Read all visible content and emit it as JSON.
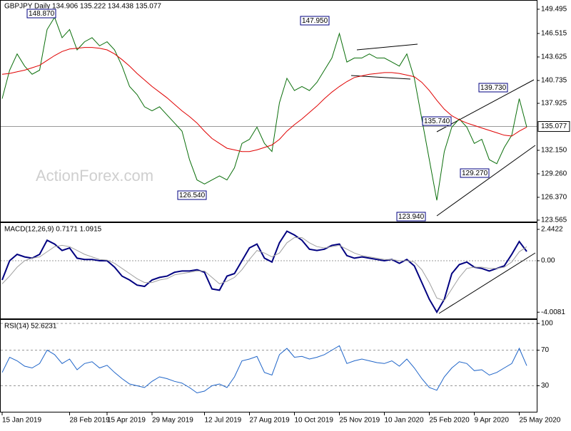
{
  "chart_data": [
    {
      "type": "line",
      "title": "GBPJPY Daily  134.906 135.222 134.438 135.077",
      "watermark": "ActionForex.com",
      "ylim": [
        123.3,
        150.63
      ],
      "yticks": [
        149.495,
        146.515,
        143.625,
        140.735,
        137.925,
        {
          "value": 132.15,
          "label": "132.150"
        },
        {
          "value": 129.26,
          "label": "129.260"
        },
        {
          "value": 126.37,
          "label": "126.370"
        },
        123.565
      ],
      "last_price": {
        "value": 135.077,
        "label": "135.077"
      },
      "annotations": [
        "148.870",
        "147.950",
        "126.540",
        "135.740",
        "139.730",
        "129.270",
        "123.940"
      ],
      "series": [
        {
          "name": "Close",
          "color": "#0a6e0a",
          "values": [
            138.5,
            142,
            144,
            142.5,
            141.5,
            142,
            147,
            148.5,
            146,
            147,
            144.5,
            145.5,
            146,
            145,
            145.5,
            144.5,
            142.5,
            140,
            139,
            137.5,
            137,
            137.5,
            136.5,
            135.5,
            134.5,
            131,
            128.5,
            128,
            128.5,
            129,
            128.5,
            130,
            133,
            133.5,
            135,
            133,
            132,
            138,
            141,
            139.5,
            140,
            139.5,
            140.5,
            142,
            143.5,
            146.5,
            143,
            143.5,
            143.5,
            144,
            143.5,
            143.5,
            143,
            142.5,
            144,
            141,
            136,
            131,
            126,
            132,
            135,
            136,
            135,
            133,
            133.5,
            131,
            130.5,
            132.5,
            134,
            138.5,
            135
          ]
        },
        {
          "name": "MA",
          "color": "#e00000",
          "values": [
            141.5,
            141.6,
            141.8,
            142,
            142.3,
            142.6,
            143.2,
            143.8,
            144.3,
            144.6,
            144.7,
            144.8,
            144.8,
            144.7,
            144.5,
            144,
            143.3,
            142.5,
            141.6,
            140.8,
            140,
            139.3,
            138.6,
            137.8,
            137,
            136.3,
            135.5,
            134.5,
            133.6,
            133,
            132.4,
            132.2,
            132,
            132,
            132.2,
            132.5,
            132.8,
            133.5,
            134.5,
            135.3,
            136,
            136.8,
            137.6,
            138.5,
            139.3,
            140,
            140.6,
            141.1,
            141.3,
            141.5,
            141.6,
            141.7,
            141.7,
            141.6,
            141.4,
            141.2,
            140.5,
            139.5,
            138.3,
            137.2,
            136.4,
            135.9,
            135.5,
            135.2,
            134.9,
            134.6,
            134.3,
            134,
            133.9,
            134.5,
            135
          ]
        }
      ]
    },
    {
      "type": "line",
      "title": "MACD(12,26,9) 0.7171 1.0915",
      "ylim": [
        -4.55,
        2.94
      ],
      "yticks": [
        2.4422,
        {
          "value": 0,
          "label": "0.00"
        },
        -4.0081
      ],
      "zero_line": true,
      "series": [
        {
          "name": "MACD",
          "color": "#000080",
          "values": [
            -1.5,
            0,
            0.5,
            0.3,
            0.2,
            0.5,
            1.6,
            1.3,
            0.8,
            1,
            0.2,
            0.1,
            0.1,
            0,
            0,
            -0.5,
            -1.2,
            -1.5,
            -1.9,
            -2,
            -1.5,
            -1.3,
            -1.2,
            -0.9,
            -0.8,
            -0.8,
            -0.7,
            -0.9,
            -2.2,
            -2.3,
            -1.2,
            -1,
            0,
            1,
            1.3,
            0.2,
            -0.1,
            1.4,
            2.3,
            2,
            1.6,
            0.9,
            0.8,
            0.9,
            1.2,
            1.3,
            0.4,
            0.2,
            0.3,
            0.2,
            0.1,
            0,
            0.1,
            -0.2,
            0.1,
            -0.4,
            -1.7,
            -3,
            -4,
            -3,
            -1,
            -0.3,
            -0.1,
            -0.5,
            -0.6,
            -0.8,
            -0.6,
            -0.4,
            0.5,
            1.5,
            0.72
          ]
        },
        {
          "name": "Signal",
          "color": "#a0a0a0",
          "values": [
            -1.8,
            -1.2,
            -0.5,
            0,
            0.2,
            0.3,
            0.7,
            1.1,
            1.2,
            1.1,
            0.8,
            0.5,
            0.3,
            0.1,
            0.05,
            -0.2,
            -0.6,
            -1,
            -1.4,
            -1.7,
            -1.7,
            -1.5,
            -1.4,
            -1.1,
            -1,
            -0.9,
            -0.8,
            -0.8,
            -1.3,
            -1.8,
            -1.6,
            -1.3,
            -0.7,
            0.1,
            0.8,
            0.6,
            0.3,
            0.6,
            1.4,
            1.8,
            1.8,
            1.4,
            1.1,
            1,
            1.1,
            1.2,
            0.9,
            0.6,
            0.4,
            0.3,
            0.2,
            0.1,
            0.1,
            0,
            0,
            -0.1,
            -0.7,
            -1.7,
            -2.9,
            -3.1,
            -2.2,
            -1.3,
            -0.6,
            -0.5,
            -0.5,
            -0.6,
            -0.6,
            -0.5,
            -0.1,
            0.7,
            1.09
          ]
        }
      ]
    },
    {
      "type": "line",
      "title": "RSI(14) 52.6231",
      "ylim": [
        0,
        104
      ],
      "yticks": [
        100,
        70,
        30
      ],
      "grid": true,
      "categories": [
        "15 Jan 2019",
        null,
        null,
        null,
        null,
        null,
        null,
        null,
        null,
        "28 Feb 2019",
        null,
        null,
        null,
        null,
        "15 Apr 2019",
        null,
        null,
        null,
        null,
        null,
        "29 May 2019",
        null,
        null,
        null,
        null,
        null,
        null,
        "12 Jul 2019",
        null,
        null,
        null,
        null,
        null,
        "27 Aug 2019",
        null,
        null,
        null,
        null,
        null,
        "10 Oct 2019",
        null,
        null,
        null,
        null,
        null,
        "25 Nov 2019",
        null,
        null,
        null,
        null,
        null,
        "10 Jan 2020",
        null,
        null,
        null,
        null,
        null,
        "25 Feb 2020",
        null,
        null,
        null,
        null,
        null,
        "9 Apr 2020",
        null,
        null,
        null,
        null,
        null,
        "25 May 2020",
        null
      ],
      "series": [
        {
          "name": "RSI",
          "color": "#1e64c8",
          "values": [
            45,
            62,
            58,
            52,
            50,
            55,
            70,
            65,
            55,
            60,
            48,
            55,
            57,
            50,
            53,
            45,
            38,
            32,
            30,
            28,
            35,
            40,
            38,
            35,
            33,
            28,
            22,
            24,
            30,
            32,
            28,
            40,
            58,
            60,
            63,
            45,
            42,
            65,
            72,
            62,
            63,
            60,
            62,
            65,
            70,
            75,
            55,
            58,
            60,
            58,
            56,
            55,
            58,
            52,
            60,
            50,
            38,
            28,
            25,
            40,
            50,
            57,
            55,
            47,
            48,
            42,
            45,
            50,
            55,
            72,
            52.6
          ]
        }
      ]
    }
  ]
}
